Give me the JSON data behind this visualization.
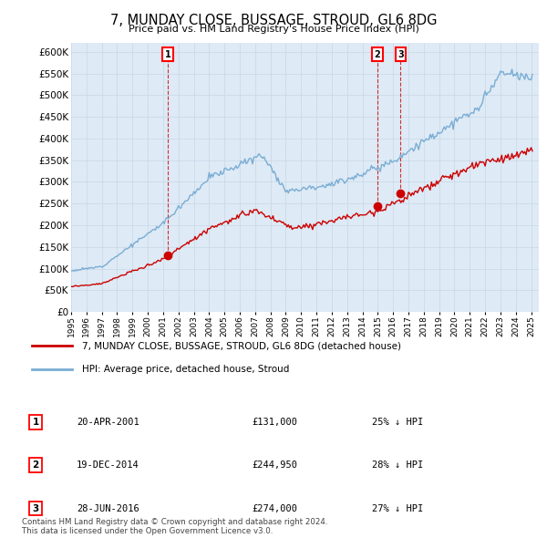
{
  "title": "7, MUNDAY CLOSE, BUSSAGE, STROUD, GL6 8DG",
  "subtitle": "Price paid vs. HM Land Registry's House Price Index (HPI)",
  "xlim_start": 1995.0,
  "xlim_end": 2025.5,
  "ylim_min": 0,
  "ylim_max": 620000,
  "yticks": [
    0,
    50000,
    100000,
    150000,
    200000,
    250000,
    300000,
    350000,
    400000,
    450000,
    500000,
    550000,
    600000
  ],
  "ytick_labels": [
    "£0",
    "£50K",
    "£100K",
    "£150K",
    "£200K",
    "£250K",
    "£300K",
    "£350K",
    "£400K",
    "£450K",
    "£500K",
    "£550K",
    "£600K"
  ],
  "xtick_years": [
    1995,
    1996,
    1997,
    1998,
    1999,
    2000,
    2001,
    2002,
    2003,
    2004,
    2005,
    2006,
    2007,
    2008,
    2009,
    2010,
    2011,
    2012,
    2013,
    2014,
    2015,
    2016,
    2017,
    2018,
    2019,
    2020,
    2021,
    2022,
    2023,
    2024,
    2025
  ],
  "sale_color": "#cc0000",
  "hpi_color": "#7aadd4",
  "plot_bg_color": "#deeaf5",
  "sale_label": "7, MUNDAY CLOSE, BUSSAGE, STROUD, GL6 8DG (detached house)",
  "hpi_label": "HPI: Average price, detached house, Stroud",
  "transaction1_date": "20-APR-2001",
  "transaction1_price": "£131,000",
  "transaction1_hpi": "25% ↓ HPI",
  "transaction1_x": 2001.3,
  "transaction1_y": 131000,
  "transaction2_date": "19-DEC-2014",
  "transaction2_price": "£244,950",
  "transaction2_hpi": "28% ↓ HPI",
  "transaction2_x": 2014.97,
  "transaction2_y": 244950,
  "transaction3_date": "28-JUN-2016",
  "transaction3_price": "£274,000",
  "transaction3_hpi": "27% ↓ HPI",
  "transaction3_x": 2016.49,
  "transaction3_y": 274000,
  "footer": "Contains HM Land Registry data © Crown copyright and database right 2024.\nThis data is licensed under the Open Government Licence v3.0.",
  "background_color": "#ffffff",
  "grid_color": "#c8d8e8"
}
